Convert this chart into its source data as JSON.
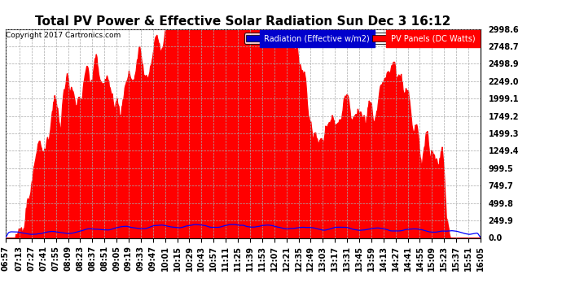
{
  "title": "Total PV Power & Effective Solar Radiation Sun Dec 3 16:12",
  "copyright": "Copyright 2017 Cartronics.com",
  "legend_radiation": "Radiation (Effective w/m2)",
  "legend_pv": "PV Panels (DC Watts)",
  "yticks": [
    0.0,
    249.9,
    499.8,
    749.7,
    999.5,
    1249.4,
    1499.3,
    1749.2,
    1999.1,
    2249.0,
    2498.9,
    2748.7,
    2998.6
  ],
  "ymax": 2998.6,
  "ymin": 0.0,
  "background_color": "#ffffff",
  "plot_bg_color": "#ffffff",
  "grid_color": "#aaaaaa",
  "fill_color": "#ff0000",
  "line_color_radiation": "#0000ff",
  "title_fontsize": 11,
  "tick_fontsize": 7,
  "xtick_labels": [
    "06:57",
    "07:13",
    "07:27",
    "07:41",
    "07:55",
    "08:09",
    "08:23",
    "08:37",
    "08:51",
    "09:05",
    "09:19",
    "09:33",
    "09:47",
    "10:01",
    "10:15",
    "10:29",
    "10:43",
    "10:57",
    "11:11",
    "11:25",
    "11:39",
    "11:53",
    "12:07",
    "12:21",
    "12:35",
    "12:49",
    "13:03",
    "13:17",
    "13:31",
    "13:45",
    "13:59",
    "14:13",
    "14:27",
    "14:41",
    "14:55",
    "15:09",
    "15:23",
    "15:37",
    "15:51",
    "16:05"
  ]
}
